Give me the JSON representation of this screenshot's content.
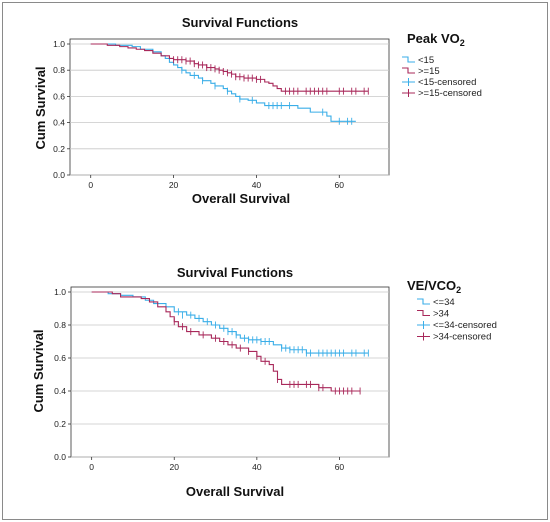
{
  "chart_data": [
    {
      "type": "line",
      "title": "Survival Functions",
      "xlabel": "Overall  Survival",
      "ylabel": "Cum Survival",
      "xlim": [
        -5,
        72
      ],
      "ylim": [
        0,
        1.0
      ],
      "xticks": [
        0,
        20,
        40,
        60
      ],
      "yticks": [
        0.0,
        0.2,
        0.4,
        0.6,
        0.8,
        1.0
      ],
      "ytick_labels": [
        "0.0",
        "0.2",
        "0.4",
        "0.6",
        "0.8",
        "1.0"
      ],
      "grid": "horizontal",
      "legend": {
        "title": "Peak VO",
        "title_sub": "2",
        "placement": "right",
        "entries": [
          {
            "label": "<15",
            "color": "#3aaee8",
            "style": "step"
          },
          {
            "label": ">=15",
            "color": "#a8285a",
            "style": "step"
          },
          {
            "label": "<15-censored",
            "color": "#3aaee8",
            "style": "censor"
          },
          {
            "label": ">=15-censored",
            "color": "#a8285a",
            "style": "censor"
          }
        ]
      },
      "series": [
        {
          "name": "<15",
          "color": "#3aaee8",
          "steps": [
            [
              0,
              1.0
            ],
            [
              6,
              0.99
            ],
            [
              10,
              0.98
            ],
            [
              12,
              0.96
            ],
            [
              15,
              0.94
            ],
            [
              17,
              0.91
            ],
            [
              18,
              0.89
            ],
            [
              19,
              0.86
            ],
            [
              20,
              0.84
            ],
            [
              21,
              0.82
            ],
            [
              22,
              0.8
            ],
            [
              23,
              0.78
            ],
            [
              24,
              0.76
            ],
            [
              26,
              0.74
            ],
            [
              27,
              0.72
            ],
            [
              29,
              0.7
            ],
            [
              30,
              0.68
            ],
            [
              32,
              0.66
            ],
            [
              33,
              0.64
            ],
            [
              34,
              0.62
            ],
            [
              35,
              0.6
            ],
            [
              36,
              0.58
            ],
            [
              38,
              0.57
            ],
            [
              40,
              0.55
            ],
            [
              42,
              0.53
            ],
            [
              50,
              0.51
            ],
            [
              53,
              0.48
            ],
            [
              57,
              0.45
            ],
            [
              58,
              0.41
            ],
            [
              64,
              0.41
            ]
          ],
          "censored": [
            [
              22,
              0.8
            ],
            [
              25,
              0.76
            ],
            [
              27,
              0.72
            ],
            [
              30,
              0.68
            ],
            [
              33,
              0.64
            ],
            [
              36,
              0.58
            ],
            [
              39,
              0.57
            ],
            [
              43,
              0.53
            ],
            [
              44,
              0.53
            ],
            [
              45,
              0.53
            ],
            [
              46,
              0.53
            ],
            [
              48,
              0.53
            ],
            [
              56,
              0.48
            ],
            [
              60,
              0.41
            ],
            [
              62,
              0.41
            ],
            [
              63,
              0.41
            ]
          ]
        },
        {
          "name": ">=15",
          "color": "#a8285a",
          "steps": [
            [
              0,
              1.0
            ],
            [
              4,
              0.99
            ],
            [
              7,
              0.98
            ],
            [
              9,
              0.97
            ],
            [
              11,
              0.96
            ],
            [
              13,
              0.95
            ],
            [
              15,
              0.93
            ],
            [
              17,
              0.91
            ],
            [
              19,
              0.89
            ],
            [
              20,
              0.88
            ],
            [
              23,
              0.87
            ],
            [
              25,
              0.85
            ],
            [
              26,
              0.84
            ],
            [
              28,
              0.82
            ],
            [
              30,
              0.81
            ],
            [
              31,
              0.8
            ],
            [
              32,
              0.79
            ],
            [
              33,
              0.78
            ],
            [
              34,
              0.77
            ],
            [
              35,
              0.75
            ],
            [
              37,
              0.74
            ],
            [
              40,
              0.73
            ],
            [
              42,
              0.71
            ],
            [
              43,
              0.7
            ],
            [
              44,
              0.68
            ],
            [
              45,
              0.66
            ],
            [
              46,
              0.64
            ],
            [
              67,
              0.64
            ]
          ],
          "censored": [
            [
              20,
              0.88
            ],
            [
              21,
              0.88
            ],
            [
              22,
              0.88
            ],
            [
              23,
              0.87
            ],
            [
              24,
              0.87
            ],
            [
              25,
              0.85
            ],
            [
              26,
              0.84
            ],
            [
              27,
              0.84
            ],
            [
              28,
              0.82
            ],
            [
              29,
              0.82
            ],
            [
              30,
              0.81
            ],
            [
              31,
              0.8
            ],
            [
              32,
              0.79
            ],
            [
              33,
              0.78
            ],
            [
              34,
              0.77
            ],
            [
              35,
              0.75
            ],
            [
              36,
              0.75
            ],
            [
              37,
              0.74
            ],
            [
              38,
              0.74
            ],
            [
              39,
              0.74
            ],
            [
              40,
              0.73
            ],
            [
              41,
              0.73
            ],
            [
              47,
              0.64
            ],
            [
              48,
              0.64
            ],
            [
              49,
              0.64
            ],
            [
              50,
              0.64
            ],
            [
              52,
              0.64
            ],
            [
              53,
              0.64
            ],
            [
              54,
              0.64
            ],
            [
              55,
              0.64
            ],
            [
              56,
              0.64
            ],
            [
              57,
              0.64
            ],
            [
              60,
              0.64
            ],
            [
              61,
              0.64
            ],
            [
              63,
              0.64
            ],
            [
              64,
              0.64
            ],
            [
              66,
              0.64
            ],
            [
              67,
              0.64
            ]
          ]
        }
      ]
    },
    {
      "type": "line",
      "title": "Survival Functions",
      "xlabel": "Overall Survival",
      "ylabel": "Cum Survival",
      "xlim": [
        -5,
        72
      ],
      "ylim": [
        0,
        1.0
      ],
      "xticks": [
        0,
        20,
        40,
        60
      ],
      "yticks": [
        0.0,
        0.2,
        0.4,
        0.6,
        0.8,
        1.0
      ],
      "ytick_labels": [
        "0.0",
        "0.2",
        "0.4",
        "0.6",
        "0.8",
        "1.0"
      ],
      "grid": "horizontal",
      "legend": {
        "title": "VE/VCO",
        "title_sub": "2",
        "placement": "right",
        "entries": [
          {
            "label": "<=34",
            "color": "#3aaee8",
            "style": "step"
          },
          {
            "label": ">34",
            "color": "#a8285a",
            "style": "step"
          },
          {
            "label": "<=34-censored",
            "color": "#3aaee8",
            "style": "censor"
          },
          {
            "label": ">34-censored",
            "color": "#a8285a",
            "style": "censor"
          }
        ]
      },
      "series": [
        {
          "name": "<=34",
          "color": "#3aaee8",
          "steps": [
            [
              0,
              1.0
            ],
            [
              4,
              0.99
            ],
            [
              7,
              0.98
            ],
            [
              10,
              0.97
            ],
            [
              13,
              0.95
            ],
            [
              15,
              0.93
            ],
            [
              18,
              0.91
            ],
            [
              20,
              0.88
            ],
            [
              23,
              0.86
            ],
            [
              25,
              0.84
            ],
            [
              27,
              0.82
            ],
            [
              29,
              0.8
            ],
            [
              31,
              0.78
            ],
            [
              33,
              0.76
            ],
            [
              35,
              0.74
            ],
            [
              36,
              0.72
            ],
            [
              38,
              0.71
            ],
            [
              41,
              0.7
            ],
            [
              44,
              0.68
            ],
            [
              46,
              0.66
            ],
            [
              48,
              0.65
            ],
            [
              52,
              0.63
            ],
            [
              67,
              0.63
            ]
          ],
          "censored": [
            [
              21,
              0.88
            ],
            [
              22,
              0.86
            ],
            [
              24,
              0.86
            ],
            [
              26,
              0.84
            ],
            [
              28,
              0.82
            ],
            [
              30,
              0.8
            ],
            [
              32,
              0.78
            ],
            [
              33,
              0.76
            ],
            [
              34,
              0.76
            ],
            [
              35,
              0.74
            ],
            [
              37,
              0.72
            ],
            [
              38,
              0.71
            ],
            [
              39,
              0.71
            ],
            [
              40,
              0.71
            ],
            [
              41,
              0.7
            ],
            [
              42,
              0.7
            ],
            [
              43,
              0.7
            ],
            [
              46,
              0.66
            ],
            [
              47,
              0.66
            ],
            [
              48,
              0.65
            ],
            [
              49,
              0.65
            ],
            [
              50,
              0.65
            ],
            [
              51,
              0.65
            ],
            [
              52,
              0.63
            ],
            [
              53,
              0.63
            ],
            [
              55,
              0.63
            ],
            [
              56,
              0.63
            ],
            [
              57,
              0.63
            ],
            [
              58,
              0.63
            ],
            [
              59,
              0.63
            ],
            [
              60,
              0.63
            ],
            [
              61,
              0.63
            ],
            [
              63,
              0.63
            ],
            [
              64,
              0.63
            ],
            [
              66,
              0.63
            ],
            [
              67,
              0.63
            ]
          ]
        },
        {
          "name": ">34",
          "color": "#a8285a",
          "steps": [
            [
              0,
              1.0
            ],
            [
              5,
              0.99
            ],
            [
              7,
              0.97
            ],
            [
              12,
              0.96
            ],
            [
              14,
              0.94
            ],
            [
              16,
              0.91
            ],
            [
              18,
              0.88
            ],
            [
              19,
              0.85
            ],
            [
              20,
              0.82
            ],
            [
              21,
              0.79
            ],
            [
              23,
              0.76
            ],
            [
              26,
              0.74
            ],
            [
              29,
              0.72
            ],
            [
              31,
              0.7
            ],
            [
              33,
              0.68
            ],
            [
              35,
              0.66
            ],
            [
              38,
              0.64
            ],
            [
              40,
              0.61
            ],
            [
              41,
              0.58
            ],
            [
              43,
              0.56
            ],
            [
              44,
              0.52
            ],
            [
              45,
              0.47
            ],
            [
              46,
              0.44
            ],
            [
              55,
              0.42
            ],
            [
              58,
              0.4
            ],
            [
              65,
              0.4
            ]
          ],
          "censored": [
            [
              20,
              0.82
            ],
            [
              22,
              0.79
            ],
            [
              24,
              0.76
            ],
            [
              27,
              0.74
            ],
            [
              30,
              0.72
            ],
            [
              32,
              0.7
            ],
            [
              34,
              0.68
            ],
            [
              36,
              0.66
            ],
            [
              38,
              0.64
            ],
            [
              40,
              0.61
            ],
            [
              42,
              0.58
            ],
            [
              45,
              0.47
            ],
            [
              48,
              0.44
            ],
            [
              49,
              0.44
            ],
            [
              50,
              0.44
            ],
            [
              52,
              0.44
            ],
            [
              53,
              0.44
            ],
            [
              55,
              0.42
            ],
            [
              56,
              0.42
            ],
            [
              59,
              0.4
            ],
            [
              60,
              0.4
            ],
            [
              61,
              0.4
            ],
            [
              62,
              0.4
            ],
            [
              63,
              0.4
            ],
            [
              65,
              0.4
            ]
          ]
        }
      ]
    }
  ]
}
